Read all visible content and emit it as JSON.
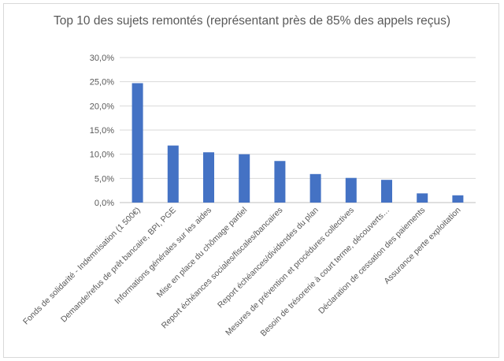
{
  "chart_data": {
    "type": "bar",
    "title": "Top 10 des sujets remontés (représentant près de 85% des appels reçus)",
    "xlabel": "",
    "ylabel": "",
    "ylim": [
      0,
      30
    ],
    "ytick_labels": [
      "0,0%",
      "5,0%",
      "10,0%",
      "15,0%",
      "20,0%",
      "25,0%",
      "30,0%"
    ],
    "grid": true,
    "legend": "none",
    "bar_color": "#4472c4",
    "categories": [
      "Fonds de solidarité - Indemnisation (1 500€)",
      "Demande/refus de prêt bancaire, BPI, PGE",
      "Informations générales sur les aides",
      "Mise en place du chômage partiel",
      "Report échéances sociales/fiscales/bancaires",
      "Report échéances/dividendes du plan",
      "Mesures de prévention et procédures collectives",
      "Besoin de trésorerie à court terme, découverts…",
      "Déclaration de cessation des paiements",
      "Assurance perte exploitation"
    ],
    "values": [
      24.7,
      11.8,
      10.4,
      10.0,
      8.6,
      5.9,
      5.1,
      4.7,
      1.9,
      1.5
    ]
  }
}
